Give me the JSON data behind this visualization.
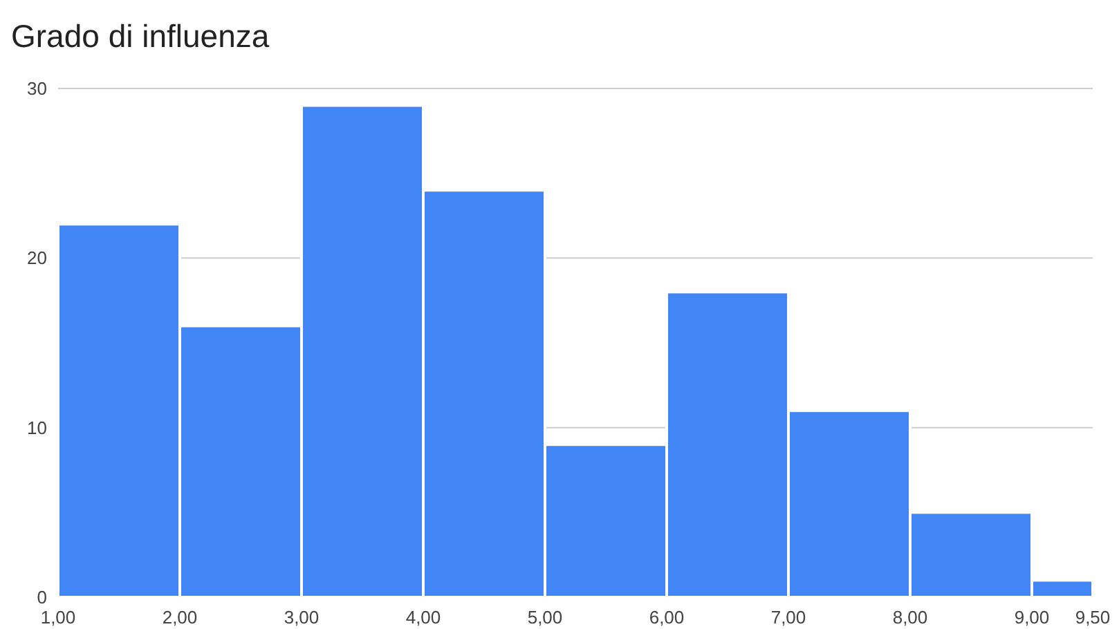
{
  "chart_data": {
    "type": "histogram",
    "title": "Grado di influenza",
    "bins": [
      1,
      2,
      3,
      4,
      5,
      6,
      7,
      8,
      9,
      9.5
    ],
    "values": [
      22,
      16,
      29,
      24,
      9,
      18,
      11,
      5,
      1
    ],
    "color": "#4285f4",
    "xlim": [
      1,
      9.5
    ],
    "xticks": [
      {
        "value": 1,
        "label": "1,00"
      },
      {
        "value": 2,
        "label": "2,00"
      },
      {
        "value": 3,
        "label": "3,00"
      },
      {
        "value": 4,
        "label": "4,00"
      },
      {
        "value": 5,
        "label": "5,00"
      },
      {
        "value": 6,
        "label": "6,00"
      },
      {
        "value": 7,
        "label": "7,00"
      },
      {
        "value": 8,
        "label": "8,00"
      },
      {
        "value": 9,
        "label": "9,00"
      },
      {
        "value": 9.5,
        "label": "9,50"
      }
    ],
    "ylim": [
      0,
      30
    ],
    "yticks": [
      0,
      10,
      20,
      30
    ],
    "grid": "y"
  }
}
